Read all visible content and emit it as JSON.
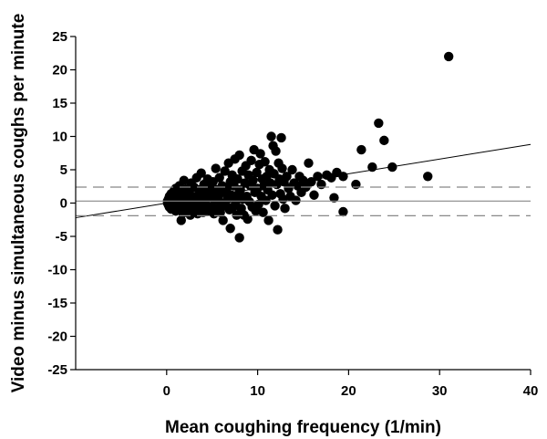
{
  "chart_data": {
    "type": "scatter",
    "title": "",
    "xlabel": "Mean coughing frequency (1/min)",
    "ylabel": "Video minus simultaneous coughs per minute",
    "xlim": [
      -10,
      40
    ],
    "ylim": [
      -25,
      25
    ],
    "x_ticks": [
      0,
      10,
      20,
      30,
      40
    ],
    "x_tick_labels": [
      "0",
      "10",
      "20",
      "30",
      "40"
    ],
    "y_ticks": [
      -25,
      -20,
      -15,
      -10,
      -5,
      0,
      5,
      10,
      15,
      20,
      25
    ],
    "y_tick_labels": [
      "-25",
      "-20",
      "-15",
      "-10",
      "-5",
      "0",
      "5",
      "10",
      "15",
      "20",
      "25"
    ],
    "grid": false,
    "legend": "none",
    "mean_difference": 0.3,
    "limits_of_agreement": [
      -1.9,
      2.4
    ],
    "regression_line": {
      "intercept": 0.0,
      "slope": 0.22
    },
    "series": [
      {
        "points": [
          [
            0.1,
            0.0
          ],
          [
            0.1,
            0.3
          ],
          [
            0.2,
            -0.3
          ],
          [
            0.2,
            0.6
          ],
          [
            0.3,
            1.0
          ],
          [
            0.3,
            -0.6
          ],
          [
            0.4,
            0.2
          ],
          [
            0.5,
            -0.9
          ],
          [
            0.5,
            1.4
          ],
          [
            0.6,
            0.5
          ],
          [
            0.7,
            -0.4
          ],
          [
            0.8,
            1.8
          ],
          [
            0.9,
            0.9
          ],
          [
            1.0,
            -1.2
          ],
          [
            1.0,
            2.2
          ],
          [
            1.1,
            0.0
          ],
          [
            1.2,
            1.2
          ],
          [
            1.3,
            -0.8
          ],
          [
            1.4,
            2.6
          ],
          [
            1.5,
            0.4
          ],
          [
            1.6,
            -2.6
          ],
          [
            1.7,
            1.6
          ],
          [
            1.8,
            -1.5
          ],
          [
            1.9,
            3.4
          ],
          [
            2.0,
            0.8
          ],
          [
            2.1,
            -0.5
          ],
          [
            2.2,
            2.1
          ],
          [
            2.3,
            -1.2
          ],
          [
            2.4,
            0.2
          ],
          [
            2.5,
            1.5
          ],
          [
            2.6,
            -1.8
          ],
          [
            2.7,
            3.0
          ],
          [
            2.8,
            0.6
          ],
          [
            2.9,
            -0.4
          ],
          [
            3.0,
            2.4
          ],
          [
            3.1,
            -1.0
          ],
          [
            3.2,
            1.0
          ],
          [
            3.3,
            3.8
          ],
          [
            3.4,
            -1.6
          ],
          [
            3.5,
            0.2
          ],
          [
            3.6,
            2.0
          ],
          [
            3.7,
            -0.8
          ],
          [
            3.8,
            4.5
          ],
          [
            3.9,
            1.2
          ],
          [
            4.0,
            -1.4
          ],
          [
            4.1,
            2.8
          ],
          [
            4.2,
            0.4
          ],
          [
            4.3,
            -0.3
          ],
          [
            4.4,
            1.8
          ],
          [
            4.5,
            3.6
          ],
          [
            4.6,
            -1.2
          ],
          [
            4.7,
            0.8
          ],
          [
            4.8,
            2.4
          ],
          [
            4.9,
            -0.6
          ],
          [
            5.0,
            1.4
          ],
          [
            5.1,
            3.2
          ],
          [
            5.2,
            -1.6
          ],
          [
            5.3,
            0.4
          ],
          [
            5.4,
            5.2
          ],
          [
            5.5,
            2.0
          ],
          [
            5.6,
            -0.9
          ],
          [
            5.7,
            1.0
          ],
          [
            5.8,
            3.8
          ],
          [
            5.9,
            -1.4
          ],
          [
            6.0,
            0.0
          ],
          [
            6.1,
            2.6
          ],
          [
            6.2,
            -2.6
          ],
          [
            6.3,
            1.6
          ],
          [
            6.4,
            4.8
          ],
          [
            6.5,
            -0.4
          ],
          [
            6.6,
            2.2
          ],
          [
            6.7,
            0.6
          ],
          [
            6.8,
            6.0
          ],
          [
            6.9,
            -1.0
          ],
          [
            7.0,
            3.2
          ],
          [
            7.0,
            -3.8
          ],
          [
            7.1,
            1.2
          ],
          [
            7.2,
            4.2
          ],
          [
            7.3,
            -0.6
          ],
          [
            7.4,
            2.6
          ],
          [
            7.5,
            6.6
          ],
          [
            7.6,
            0.2
          ],
          [
            7.7,
            -1.8
          ],
          [
            7.8,
            3.6
          ],
          [
            7.9,
            1.4
          ],
          [
            8.0,
            -5.2
          ],
          [
            8.0,
            7.2
          ],
          [
            8.1,
            2.0
          ],
          [
            8.2,
            -0.8
          ],
          [
            8.3,
            4.8
          ],
          [
            8.4,
            0.6
          ],
          [
            8.5,
            -1.8
          ],
          [
            8.6,
            3.0
          ],
          [
            8.7,
            5.6
          ],
          [
            8.8,
            1.0
          ],
          [
            8.9,
            -2.4
          ],
          [
            9.0,
            4.2
          ],
          [
            9.1,
            0.2
          ],
          [
            9.2,
            2.6
          ],
          [
            9.3,
            6.4
          ],
          [
            9.4,
            -0.6
          ],
          [
            9.5,
            3.4
          ],
          [
            9.6,
            8.0
          ],
          [
            9.7,
            1.6
          ],
          [
            9.8,
            -1.2
          ],
          [
            9.9,
            4.6
          ],
          [
            10.0,
            2.2
          ],
          [
            10.1,
            -0.2
          ],
          [
            10.2,
            5.8
          ],
          [
            10.3,
            7.4
          ],
          [
            10.4,
            1.0
          ],
          [
            10.5,
            3.6
          ],
          [
            10.6,
            -1.4
          ],
          [
            10.7,
            2.6
          ],
          [
            10.8,
            6.2
          ],
          [
            10.9,
            0.4
          ],
          [
            11.0,
            4.0
          ],
          [
            11.1,
            2.0
          ],
          [
            11.2,
            -2.6
          ],
          [
            11.3,
            5.0
          ],
          [
            11.4,
            3.0
          ],
          [
            11.5,
            10.0
          ],
          [
            11.6,
            1.2
          ],
          [
            11.7,
            8.6
          ],
          [
            11.8,
            4.4
          ],
          [
            11.9,
            -0.4
          ],
          [
            12.0,
            7.8
          ],
          [
            12.1,
            2.8
          ],
          [
            12.2,
            -4.0
          ],
          [
            12.3,
            6.0
          ],
          [
            12.4,
            3.6
          ],
          [
            12.5,
            1.4
          ],
          [
            12.6,
            9.8
          ],
          [
            12.7,
            5.2
          ],
          [
            12.8,
            0.6
          ],
          [
            12.9,
            3.2
          ],
          [
            13.0,
            -0.8
          ],
          [
            13.2,
            4.0
          ],
          [
            13.4,
            2.2
          ],
          [
            13.6,
            1.0
          ],
          [
            13.8,
            5.0
          ],
          [
            14.0,
            3.0
          ],
          [
            14.2,
            0.4
          ],
          [
            14.4,
            2.6
          ],
          [
            14.6,
            4.0
          ],
          [
            14.8,
            1.6
          ],
          [
            15.0,
            3.4
          ],
          [
            15.3,
            2.4
          ],
          [
            15.6,
            6.0
          ],
          [
            15.9,
            3.2
          ],
          [
            16.2,
            1.2
          ],
          [
            16.6,
            4.0
          ],
          [
            17.0,
            2.8
          ],
          [
            17.6,
            4.2
          ],
          [
            18.1,
            3.8
          ],
          [
            18.4,
            0.8
          ],
          [
            18.7,
            4.6
          ],
          [
            19.4,
            4.0
          ],
          [
            19.4,
            -1.3
          ],
          [
            20.8,
            2.8
          ],
          [
            21.4,
            8.0
          ],
          [
            22.6,
            5.4
          ],
          [
            23.3,
            12.0
          ],
          [
            23.9,
            9.4
          ],
          [
            24.8,
            5.4
          ],
          [
            28.7,
            4.0
          ],
          [
            31.0,
            22.0
          ]
        ]
      }
    ]
  }
}
